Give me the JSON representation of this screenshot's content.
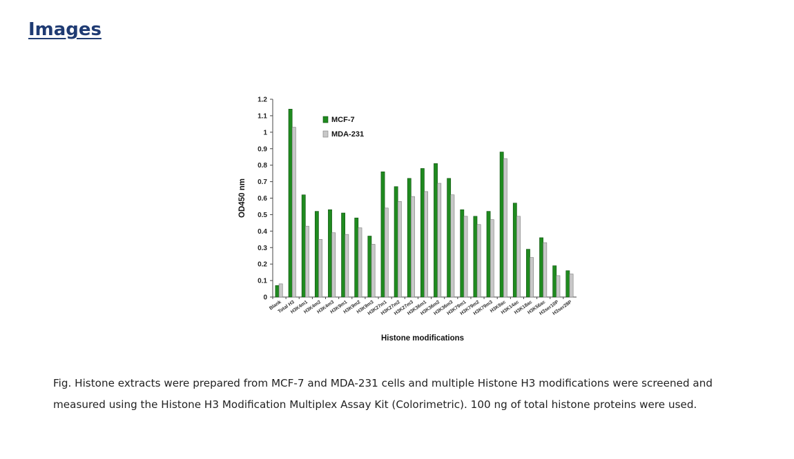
{
  "page": {
    "heading": "Images",
    "caption": "Fig. Histone extracts were prepared from MCF-7 and MDA-231 cells and multiple Histone H3 modifications were screened and measured using the Histone H3 Modification Multiplex Assay Kit (Colorimetric). 100 ng of total histone proteins were used."
  },
  "colors": {
    "mcf7": "#1f8a1f",
    "mda231": "#c8c8c8"
  },
  "chart_data": {
    "type": "bar",
    "title": "",
    "xlabel": "Histone modifications",
    "ylabel": "OD450 nm",
    "ylim": [
      0,
      1.2
    ],
    "yticks": [
      "0",
      "0.1",
      "0.2",
      "0.3",
      "0.4",
      "0.5",
      "0.6",
      "0.7",
      "0.8",
      "0.9",
      "1",
      "1.1",
      "1.2"
    ],
    "grid": false,
    "legend_position": "top-left",
    "categories": [
      "Blank",
      "Total H3",
      "H3K4m1",
      "H3K4m2",
      "H3K4m3",
      "H3K9m1",
      "H3K9m2",
      "H3K9m3",
      "H3K27m1",
      "H3K27m2",
      "H3K27m3",
      "H3K36m1",
      "H3K36m2",
      "H3K36m3",
      "H3K79m1",
      "H3K79m2",
      "H3K79m3",
      "H3K9ac",
      "H3K14ac",
      "H3K18ac",
      "H3K56ac",
      "H3ser10P",
      "H3ser28P"
    ],
    "series": [
      {
        "name": "MCF-7",
        "color": "#1f8a1f",
        "values": [
          0.07,
          1.14,
          0.62,
          0.52,
          0.53,
          0.51,
          0.48,
          0.37,
          0.76,
          0.67,
          0.72,
          0.78,
          0.81,
          0.72,
          0.53,
          0.49,
          0.52,
          0.88,
          0.57,
          0.29,
          0.36,
          0.19,
          0.16
        ]
      },
      {
        "name": "MDA-231",
        "color": "#c8c8c8",
        "values": [
          0.08,
          1.03,
          0.43,
          0.35,
          0.39,
          0.38,
          0.42,
          0.32,
          0.54,
          0.58,
          0.61,
          0.64,
          0.69,
          0.62,
          0.49,
          0.44,
          0.47,
          0.84,
          0.49,
          0.24,
          0.33,
          0.13,
          0.14
        ]
      }
    ]
  }
}
